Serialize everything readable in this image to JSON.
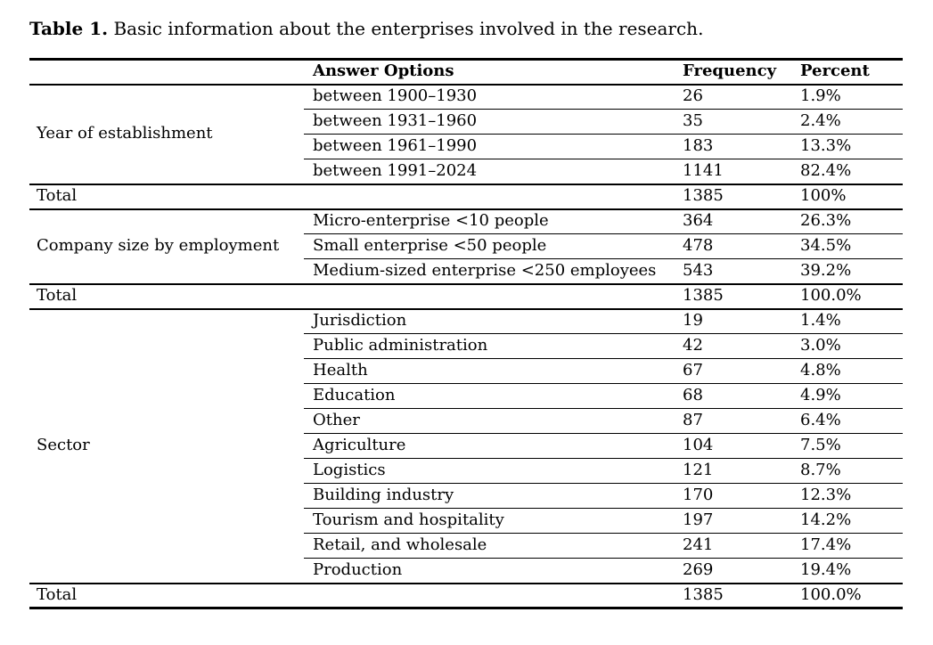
{
  "page": {
    "background": "#ffffff",
    "text_color": "#000000"
  },
  "title": {
    "label": "Table 1.",
    "text": "Basic information about the enterprises involved in the research."
  },
  "table": {
    "headers": {
      "answer_options": "Answer Options",
      "frequency": "Frequency",
      "percent": "Percent"
    },
    "sections": [
      {
        "label": "Year of establishment",
        "rows": [
          {
            "option": "between 1900–1930",
            "frequency": "26",
            "percent": "1.9%"
          },
          {
            "option": "between 1931–1960",
            "frequency": "35",
            "percent": "2.4%"
          },
          {
            "option": "between 1961–1990",
            "frequency": "183",
            "percent": "13.3%"
          },
          {
            "option": "between 1991–2024",
            "frequency": "1141",
            "percent": "82.4%"
          }
        ],
        "total": {
          "label": "Total",
          "frequency": "1385",
          "percent": "100%"
        }
      },
      {
        "label": "Company size by employment",
        "rows": [
          {
            "option": "Micro-enterprise <10 people",
            "frequency": "364",
            "percent": "26.3%"
          },
          {
            "option": "Small enterprise <50 people",
            "frequency": "478",
            "percent": "34.5%"
          },
          {
            "option": "Medium-sized enterprise <250 employees",
            "frequency": "543",
            "percent": "39.2%"
          }
        ],
        "total": {
          "label": "Total",
          "frequency": "1385",
          "percent": "100.0%"
        }
      },
      {
        "label": "Sector",
        "rows": [
          {
            "option": "Jurisdiction",
            "frequency": "19",
            "percent": "1.4%"
          },
          {
            "option": "Public administration",
            "frequency": "42",
            "percent": "3.0%"
          },
          {
            "option": "Health",
            "frequency": "67",
            "percent": "4.8%"
          },
          {
            "option": "Education",
            "frequency": "68",
            "percent": "4.9%"
          },
          {
            "option": "Other",
            "frequency": "87",
            "percent": "6.4%"
          },
          {
            "option": "Agriculture",
            "frequency": "104",
            "percent": "7.5%"
          },
          {
            "option": "Logistics",
            "frequency": "121",
            "percent": "8.7%"
          },
          {
            "option": "Building industry",
            "frequency": "170",
            "percent": "12.3%"
          },
          {
            "option": "Tourism and hospitality",
            "frequency": "197",
            "percent": "14.2%"
          },
          {
            "option": "Retail, and wholesale",
            "frequency": "241",
            "percent": "17.4%"
          },
          {
            "option": "Production",
            "frequency": "269",
            "percent": "19.4%"
          }
        ],
        "total": {
          "label": "Total",
          "frequency": "1385",
          "percent": "100.0%"
        }
      }
    ]
  }
}
